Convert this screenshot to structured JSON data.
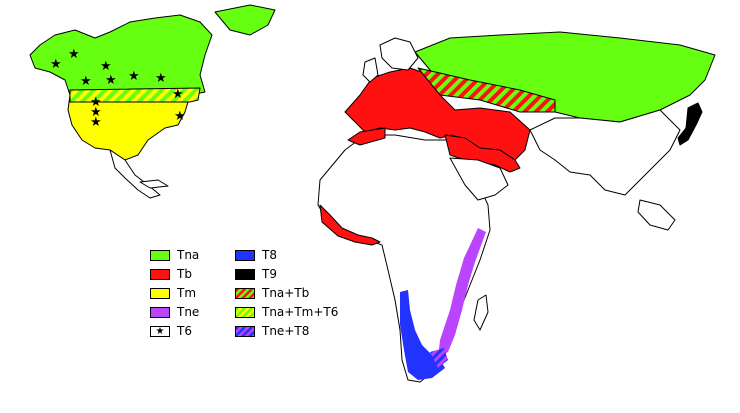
{
  "colors": {
    "Tna": "#66ff11",
    "Tb": "#ff1111",
    "Tm": "#ffff00",
    "Tne": "#bb44ff",
    "T8": "#2233ff",
    "T9": "#000000",
    "land": "#ffffff",
    "border": "#000000"
  },
  "legend": {
    "items": [
      {
        "label": "Tna",
        "pattern": "solid",
        "color": "#66ff11"
      },
      {
        "label": "Tb",
        "pattern": "solid",
        "color": "#ff1111"
      },
      {
        "label": "Tm",
        "pattern": "solid",
        "color": "#ffff00"
      },
      {
        "label": "Tne",
        "pattern": "solid",
        "color": "#bb44ff"
      },
      {
        "label": "T6",
        "pattern": "star",
        "color": "#ffffff"
      },
      {
        "label": "T8",
        "pattern": "solid",
        "color": "#2233ff"
      },
      {
        "label": "T9",
        "pattern": "solid",
        "color": "#000000"
      },
      {
        "label": "Tna+Tb",
        "pattern": "stripe",
        "colors": [
          "#ff1111",
          "#66ff11"
        ]
      },
      {
        "label": "Tna+Tm+T6",
        "pattern": "stripe",
        "colors": [
          "#66ff11",
          "#ffff00"
        ]
      },
      {
        "label": "Tne+T8",
        "pattern": "stripe",
        "colors": [
          "#2233ff",
          "#bb44ff"
        ]
      }
    ]
  }
}
